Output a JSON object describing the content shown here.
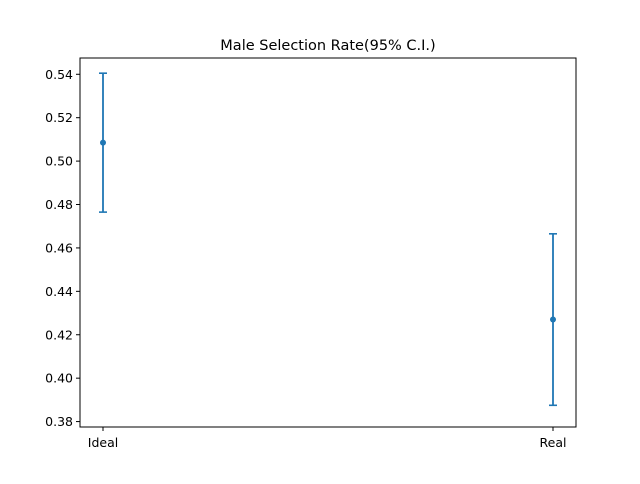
{
  "chart_data": {
    "type": "errorbar",
    "title": "Male Selection Rate(95% C.I.)",
    "xlabel": "",
    "ylabel": "",
    "categories": [
      "Ideal",
      "Real"
    ],
    "series": [
      {
        "values": [
          0.5085,
          0.427
        ],
        "lower": [
          0.4765,
          0.3875
        ],
        "upper": [
          0.5405,
          0.4665
        ],
        "color": "#1f77b4"
      }
    ],
    "ylim": [
      0.3775,
      0.5475
    ],
    "yticks": [
      0.38,
      0.4,
      0.42,
      0.44,
      0.46,
      0.48,
      0.5,
      0.52,
      0.54
    ],
    "ytick_labels": [
      "0.38",
      "0.40",
      "0.42",
      "0.44",
      "0.46",
      "0.48",
      "0.50",
      "0.52",
      "0.54"
    ],
    "grid": false,
    "legend": "none"
  }
}
